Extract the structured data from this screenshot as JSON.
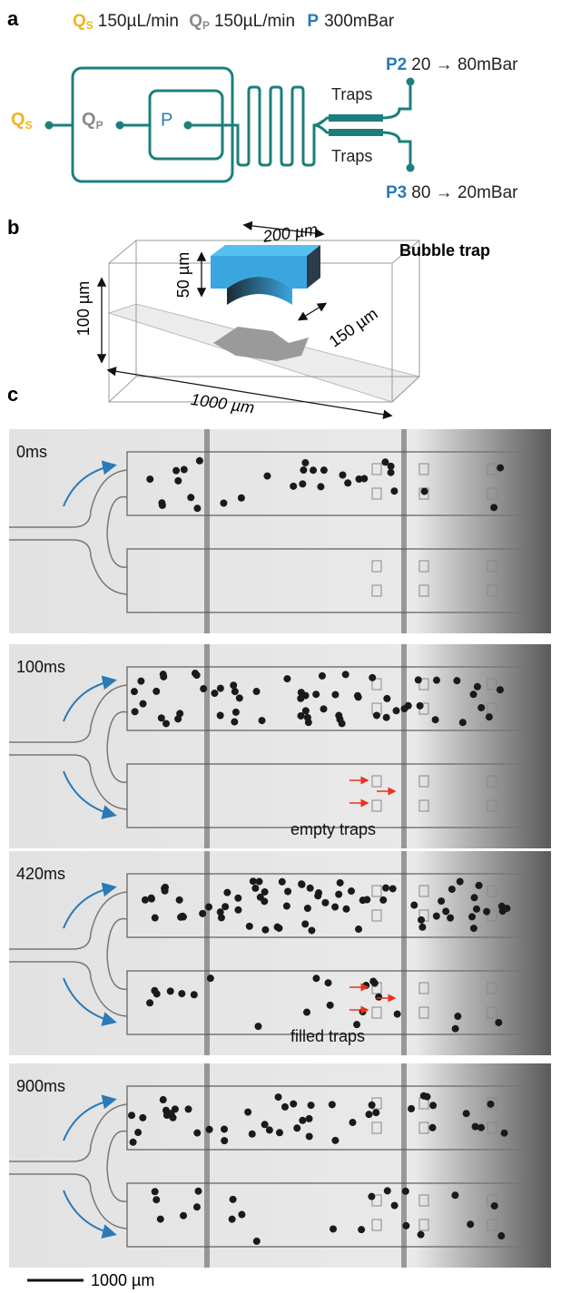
{
  "panel_a": {
    "label": "a",
    "header": [
      {
        "symbol": "Q",
        "sub": "S",
        "text": "150µL/min"
      },
      {
        "symbol": "Q",
        "sub": "P",
        "text": "150µL/min"
      },
      {
        "symbol": "P",
        "text": "300mBar"
      }
    ],
    "diagram": {
      "qs": {
        "symbol": "Q",
        "sub": "S"
      },
      "qp": {
        "symbol": "Q",
        "sub": "P"
      },
      "p": "P",
      "traps_top": "Traps",
      "traps_bottom": "Traps",
      "p2": {
        "name": "P2",
        "text": "20 → 80mBar"
      },
      "p3": {
        "name": "P3",
        "text": "80 → 20mBar"
      }
    }
  },
  "panel_b": {
    "label": "b",
    "title": "Bubble trap",
    "width_label": "200 µm",
    "depth_label": "50 µm",
    "height_label": "100 µm",
    "trap_label": "150 µm",
    "length_label": "1000 µm"
  },
  "panel_c": {
    "label": "c",
    "frames": [
      {
        "time": "0ms"
      },
      {
        "time": "100ms",
        "note": "empty traps"
      },
      {
        "time": "420ms",
        "note": "filled traps"
      },
      {
        "time": "900ms"
      }
    ],
    "scale_bar": "1000 µm"
  }
}
